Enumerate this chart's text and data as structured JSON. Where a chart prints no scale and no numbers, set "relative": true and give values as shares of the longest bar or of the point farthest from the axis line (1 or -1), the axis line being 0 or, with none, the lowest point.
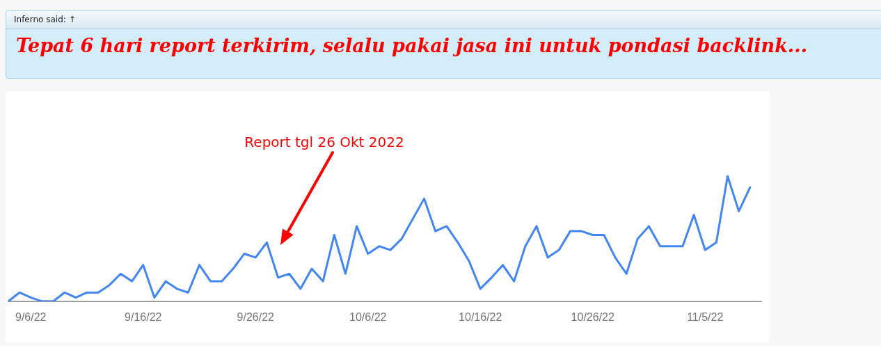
{
  "chart_data": {
    "type": "line",
    "title": "Tepat 6 hari report terkirim, selalu pakai jasa ini untuk pondasi backlink...",
    "subtitle": "Inferno said: ↑",
    "relative": true,
    "marker": "none",
    "legend": false,
    "x": [
      "2022-09-04",
      "2022-09-05",
      "2022-09-06",
      "2022-09-07",
      "2022-09-08",
      "2022-09-09",
      "2022-09-10",
      "2022-09-11",
      "2022-09-12",
      "2022-09-13",
      "2022-09-14",
      "2022-09-15",
      "2022-09-16",
      "2022-09-17",
      "2022-09-18",
      "2022-09-19",
      "2022-09-20",
      "2022-09-21",
      "2022-09-22",
      "2022-09-23",
      "2022-09-24",
      "2022-09-25",
      "2022-09-26",
      "2022-09-27",
      "2022-09-28",
      "2022-09-29",
      "2022-09-30",
      "2022-10-01",
      "2022-10-02",
      "2022-10-03",
      "2022-10-04",
      "2022-10-05",
      "2022-10-06",
      "2022-10-07",
      "2022-10-08",
      "2022-10-09",
      "2022-10-10",
      "2022-10-11",
      "2022-10-12",
      "2022-10-13",
      "2022-10-14",
      "2022-10-15",
      "2022-10-16",
      "2022-10-17",
      "2022-10-18",
      "2022-10-19",
      "2022-10-20",
      "2022-10-21",
      "2022-10-22",
      "2022-10-23",
      "2022-10-24",
      "2022-10-25",
      "2022-10-26",
      "2022-10-27",
      "2022-10-28",
      "2022-10-29",
      "2022-10-30",
      "2022-10-31",
      "2022-11-01",
      "2022-11-02",
      "2022-11-03",
      "2022-11-04",
      "2022-11-05",
      "2022-11-06",
      "2022-11-07",
      "2022-11-08",
      "2022-11-09"
    ],
    "series": [
      {
        "color": "#4285f4",
        "values": [
          0,
          0.07,
          0.03,
          0,
          0,
          0.07,
          0.03,
          0.07,
          0.07,
          0.13,
          0.22,
          0.16,
          0.29,
          0.03,
          0.16,
          0.1,
          0.07,
          0.29,
          0.16,
          0.16,
          0.26,
          0.38,
          0.35,
          0.47,
          0.19,
          0.22,
          0.1,
          0.26,
          0.16,
          0.53,
          0.22,
          0.6,
          0.38,
          0.44,
          0.41,
          0.5,
          0.66,
          0.82,
          0.56,
          0.6,
          0.47,
          0.32,
          0.1,
          0.19,
          0.29,
          0.16,
          0.44,
          0.6,
          0.35,
          0.41,
          0.56,
          0.56,
          0.53,
          0.53,
          0.35,
          0.22,
          0.5,
          0.6,
          0.44,
          0.44,
          0.44,
          0.69,
          0.41,
          0.47,
          1,
          0.72,
          0.91
        ]
      }
    ],
    "xlim": [
      "2022-09-04",
      "2022-11-10"
    ],
    "xticks": [
      {
        "value": "2022-09-06",
        "label": "9/6/22"
      },
      {
        "value": "2022-09-16",
        "label": "9/16/22"
      },
      {
        "value": "2022-09-26",
        "label": "9/26/22"
      },
      {
        "value": "2022-10-06",
        "label": "10/6/22"
      },
      {
        "value": "2022-10-16",
        "label": "10/16/22"
      },
      {
        "value": "2022-10-26",
        "label": "10/26/22"
      },
      {
        "value": "2022-11-05",
        "label": "11/5/22"
      }
    ],
    "annotations": [
      "Report tgl 26 Okt 2022"
    ]
  }
}
